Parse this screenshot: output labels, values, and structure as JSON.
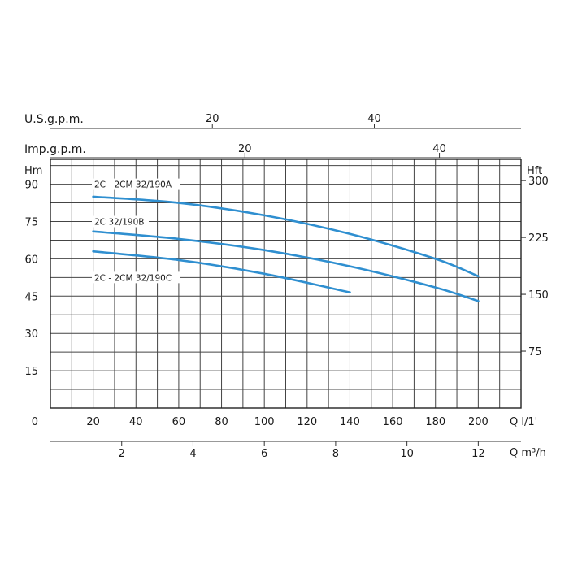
{
  "chart_data": {
    "type": "line",
    "title": "",
    "axes": {
      "usgpm": {
        "label": "U.S.g.p.m.",
        "ticks": [
          20,
          40
        ]
      },
      "impgpm": {
        "label": "Imp.g.p.m.",
        "ticks": [
          20,
          40
        ]
      },
      "hm": {
        "label": "Hm",
        "ticks": [
          0,
          15,
          30,
          45,
          60,
          75,
          90
        ],
        "range": [
          0,
          100
        ]
      },
      "hft": {
        "label": "Hft",
        "ticks": [
          75,
          150,
          225,
          300
        ]
      },
      "q_lmin": {
        "label": "Q l/1'",
        "ticks": [
          0,
          20,
          40,
          60,
          80,
          100,
          120,
          140,
          160,
          180,
          200
        ],
        "range": [
          0,
          220
        ]
      },
      "q_m3h": {
        "label": "Q m³/h",
        "ticks": [
          2,
          4,
          6,
          8,
          10,
          12
        ]
      }
    },
    "series": [
      {
        "name": "2C - 2CM 32/190A",
        "color": "#2f8fd0",
        "points": [
          [
            20,
            85
          ],
          [
            60,
            82.5
          ],
          [
            100,
            77.5
          ],
          [
            140,
            70
          ],
          [
            180,
            60
          ],
          [
            200,
            53
          ]
        ]
      },
      {
        "name": "2C 32/190B",
        "color": "#2f8fd0",
        "points": [
          [
            20,
            71
          ],
          [
            60,
            68
          ],
          [
            100,
            63.5
          ],
          [
            140,
            57
          ],
          [
            180,
            48.5
          ],
          [
            200,
            43
          ]
        ]
      },
      {
        "name": "2C - 2CM 32/190C",
        "color": "#2f8fd0",
        "points": [
          [
            20,
            63
          ],
          [
            60,
            59.5
          ],
          [
            100,
            54
          ],
          [
            140,
            46.5
          ]
        ]
      }
    ],
    "grid": true
  }
}
